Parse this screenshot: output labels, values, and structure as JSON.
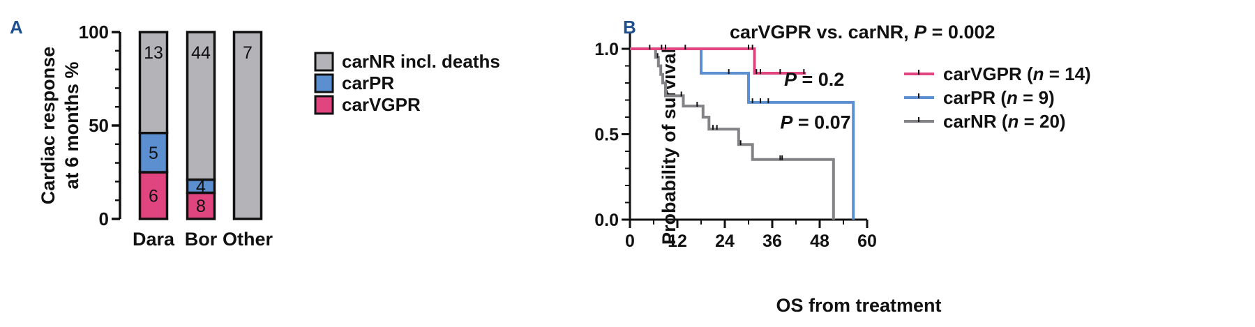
{
  "panel_a_label": "A",
  "panel_b_label": "B",
  "chart_data": [
    {
      "type": "bar",
      "stacked": true,
      "ylabel_line1": "Cardiac response",
      "ylabel_line2": "at 6 months %",
      "xlabel": "",
      "ylim": [
        0,
        100
      ],
      "yticks": [
        0,
        50,
        100
      ],
      "categories": [
        "Dara",
        "Bor",
        "Other"
      ],
      "series": [
        {
          "name": "carVGPR",
          "color": "#e0457f",
          "values": [
            25,
            14,
            0
          ],
          "labels": [
            "6",
            "8",
            ""
          ]
        },
        {
          "name": "carPR",
          "color": "#5b8fd0",
          "values": [
            21,
            7,
            0
          ],
          "labels": [
            "5",
            "4",
            ""
          ]
        },
        {
          "name": "carNR incl. deaths",
          "color": "#b4b4b8",
          "values": [
            54,
            79,
            100
          ],
          "labels": [
            "13",
            "44",
            "7"
          ]
        }
      ],
      "legend": [
        "carNR incl. deaths",
        "carPR",
        "carVGPR"
      ],
      "legend_position": "right"
    },
    {
      "type": "line",
      "subtype": "kaplan-meier",
      "title_prefix": "carVGPR vs. carNR, ",
      "title_p": "P",
      "title_value": " = 0.002",
      "xlabel": "OS from treatment",
      "ylabel": "Probability of survival",
      "xlim": [
        0,
        60
      ],
      "ylim": [
        0,
        1.0
      ],
      "xticks": [
        "0",
        "12",
        "24",
        "36",
        "48",
        "60"
      ],
      "yticks": [
        "0.0",
        "0.5",
        "1.0"
      ],
      "annotations": [
        {
          "p": "P",
          "text": " = 0.2",
          "x": 39,
          "y": 0.82
        },
        {
          "p": "P",
          "text": " = 0.07",
          "x": 38,
          "y": 0.57
        }
      ],
      "series": [
        {
          "name": "carVGPR",
          "n_label": "n",
          "n_text": " = 14)",
          "prefix": "carVGPR (",
          "color": "#e0457f",
          "steps": [
            [
              0,
              1.0
            ],
            [
              31.5,
              1.0
            ],
            [
              31.5,
              0.857
            ],
            [
              44.5,
              0.857
            ]
          ],
          "censors": [
            [
              5,
              1.0
            ],
            [
              8,
              1.0
            ],
            [
              9,
              1.0
            ],
            [
              14,
              1.0
            ],
            [
              30,
              1.0
            ],
            [
              31,
              1.0
            ],
            [
              32,
              0.857
            ],
            [
              33,
              0.857
            ],
            [
              38,
              0.857
            ],
            [
              44,
              0.857
            ]
          ]
        },
        {
          "name": "carPR",
          "n_label": "n",
          "n_text": " = 9)",
          "prefix": "carPR (",
          "color": "#5b8fd0",
          "steps": [
            [
              0,
              1.0
            ],
            [
              18,
              1.0
            ],
            [
              18,
              0.857
            ],
            [
              30,
              0.857
            ],
            [
              30,
              0.686
            ],
            [
              56.5,
              0.686
            ],
            [
              56.5,
              0.0
            ]
          ],
          "censors": [
            [
              25,
              0.857
            ],
            [
              31,
              0.686
            ],
            [
              33,
              0.686
            ],
            [
              35,
              0.686
            ]
          ]
        },
        {
          "name": "carNR",
          "n_label": "n",
          "n_text": " = 20)",
          "prefix": "carNR (",
          "color": "#838387",
          "steps": [
            [
              0,
              1.0
            ],
            [
              6.5,
              1.0
            ],
            [
              6.5,
              0.95
            ],
            [
              7.2,
              0.95
            ],
            [
              7.2,
              0.9
            ],
            [
              7.8,
              0.9
            ],
            [
              7.8,
              0.85
            ],
            [
              8.3,
              0.85
            ],
            [
              8.3,
              0.8
            ],
            [
              9,
              0.8
            ],
            [
              9,
              0.725
            ],
            [
              13.5,
              0.725
            ],
            [
              13.5,
              0.665
            ],
            [
              18.5,
              0.665
            ],
            [
              18.5,
              0.6
            ],
            [
              20,
              0.6
            ],
            [
              20,
              0.53
            ],
            [
              27.5,
              0.53
            ],
            [
              27.5,
              0.44
            ],
            [
              31,
              0.44
            ],
            [
              31,
              0.352
            ],
            [
              51.5,
              0.352
            ],
            [
              51.5,
              0.0
            ]
          ],
          "censors": [
            [
              7,
              0.95
            ],
            [
              13,
              0.725
            ],
            [
              17,
              0.665
            ],
            [
              21,
              0.53
            ],
            [
              22,
              0.53
            ],
            [
              28,
              0.44
            ],
            [
              38,
              0.352
            ],
            [
              38.5,
              0.352
            ]
          ]
        }
      ],
      "legend_position": "right"
    }
  ]
}
